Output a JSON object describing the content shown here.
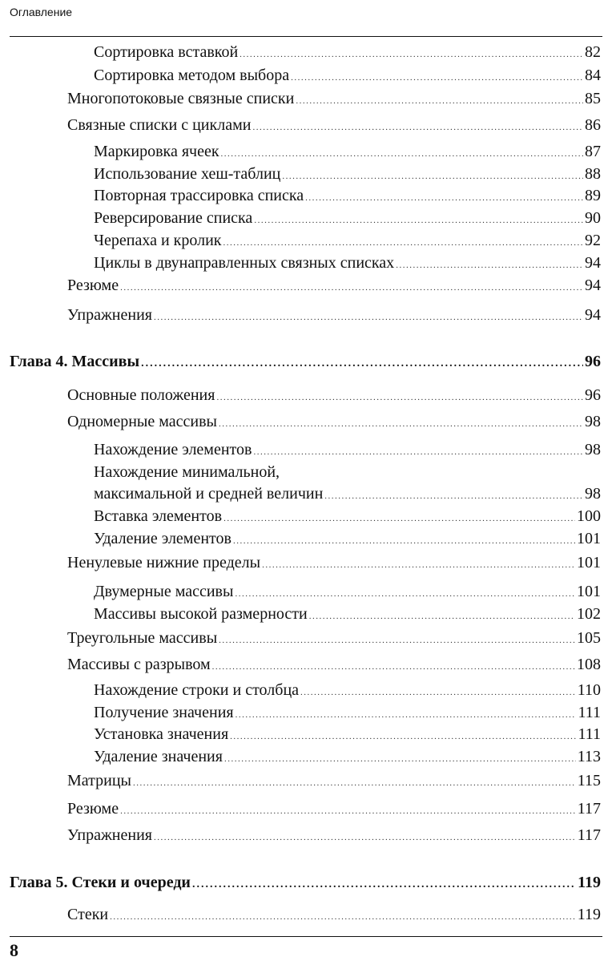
{
  "header": {
    "running_title": "Оглавление"
  },
  "toc": [
    {
      "level": 2,
      "title": "Сортировка вставкой",
      "page": "82"
    },
    {
      "level": 2,
      "title": "Сортировка методом выбора",
      "page": "84"
    },
    {
      "level": 1,
      "title": "Многопотоковые связные списки",
      "page": "85"
    },
    {
      "level": 1,
      "title": "Связные списки с циклами",
      "page": "86"
    },
    {
      "level": 2,
      "title": "Маркировка ячеек",
      "page": "87"
    },
    {
      "level": 2,
      "title": "Использование хеш-таблиц",
      "page": "88"
    },
    {
      "level": 2,
      "title": "Повторная трассировка списка",
      "page": "89"
    },
    {
      "level": 2,
      "title": "Реверсирование списка",
      "page": "90"
    },
    {
      "level": 2,
      "title": "Черепаха и кролик",
      "page": "92"
    },
    {
      "level": 2,
      "title": "Циклы в двунаправленных связных списках",
      "page": "94"
    },
    {
      "level": 1,
      "title": "Резюме",
      "page": "94"
    },
    {
      "level": 1,
      "title": "Упражнения",
      "page": "94"
    },
    {
      "level": 0,
      "title": "Глава 4. Массивы",
      "page": "96"
    },
    {
      "level": 1,
      "title": "Основные положения",
      "page": "96"
    },
    {
      "level": 1,
      "title": "Одномерные массивы",
      "page": "98"
    },
    {
      "level": 2,
      "title": "Нахождение элементов",
      "page": "98"
    },
    {
      "level": 2,
      "title_line1": "Нахождение минимальной,",
      "title": "максимальной и средней величин",
      "page": "98"
    },
    {
      "level": 2,
      "title": "Вставка элементов",
      "page": "100"
    },
    {
      "level": 2,
      "title": "Удаление элементов",
      "page": "101"
    },
    {
      "level": 1,
      "title": "Ненулевые нижние пределы",
      "page": "101"
    },
    {
      "level": 2,
      "title": "Двумерные массивы",
      "page": "101"
    },
    {
      "level": 2,
      "title": "Массивы высокой размерности",
      "page": "102"
    },
    {
      "level": 1,
      "title": "Треугольные массивы",
      "page": "105"
    },
    {
      "level": 1,
      "title": "Массивы с разрывом",
      "page": "108"
    },
    {
      "level": 2,
      "title": "Нахождение строки и столбца",
      "page": "110"
    },
    {
      "level": 2,
      "title": "Получение значения",
      "page": "111"
    },
    {
      "level": 2,
      "title": "Установка значения",
      "page": "111"
    },
    {
      "level": 2,
      "title": "Удаление значения",
      "page": "113"
    },
    {
      "level": 1,
      "title": "Матрицы",
      "page": "115"
    },
    {
      "level": 1,
      "title": "Резюме",
      "page": "117"
    },
    {
      "level": 1,
      "title": "Упражнения",
      "page": "117"
    },
    {
      "level": 0,
      "title": "Глава 5. Стеки и очереди",
      "page": "119"
    },
    {
      "level": 1,
      "title": "Стеки",
      "page": "119"
    }
  ],
  "footer": {
    "page_number": "8"
  }
}
